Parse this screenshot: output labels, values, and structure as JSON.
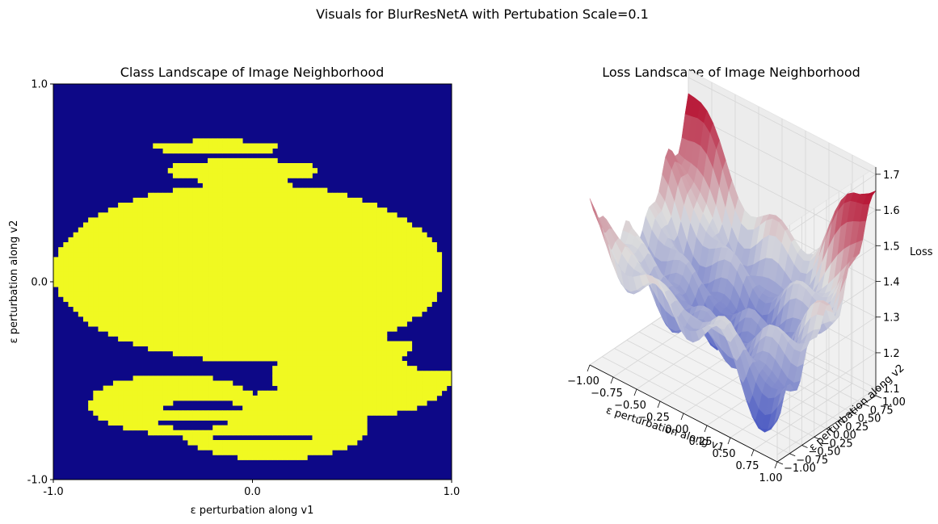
{
  "suptitle": "Visuals for BlurResNetA with Pertubation Scale=0.1",
  "colors": {
    "class_low": "#0d0887",
    "class_high": "#f0f921",
    "surface_low": "#3b4cc0",
    "surface_mid": "#dddddd",
    "surface_high": "#b40426",
    "pane_fill": "#f2f2f2",
    "grid": "#d6d6d6"
  },
  "chart_data": [
    {
      "type": "heatmap",
      "title": "Class Landscape of Image Neighborhood",
      "xlabel": "ε perturbation along v1",
      "ylabel": "ε perturbation along v2",
      "xlim": [
        -1.0,
        1.0
      ],
      "ylim": [
        -1.0,
        1.0
      ],
      "xticks": [
        "-1.0",
        "0.0",
        "1.0"
      ],
      "yticks": [
        "1.0",
        "0.0",
        "-1.0"
      ],
      "colormap": "plasma (two classes)",
      "classes": [
        0,
        1
      ],
      "class_regions": {
        "class_1_blobs": [
          {
            "cx": -0.02,
            "cy": 0.05,
            "rx": 0.98,
            "ry": 0.45
          },
          {
            "cx": -0.4,
            "cy": -0.62,
            "rx": 0.42,
            "ry": 0.15
          },
          {
            "cx": 0.1,
            "cy": -0.73,
            "rx": 0.48,
            "ry": 0.17
          },
          {
            "cx": -0.05,
            "cy": 0.56,
            "rx": 0.38,
            "ry": 0.06
          },
          {
            "cx": -0.18,
            "cy": 0.68,
            "rx": 0.32,
            "ry": 0.035
          },
          {
            "cx": 0.55,
            "cy": -0.48,
            "rx": 0.45,
            "ry": 0.2
          }
        ],
        "class_0_holes": [
          {
            "cx": 0.93,
            "cy": -0.38,
            "rx": 0.17,
            "ry": 0.07
          },
          {
            "cx": -0.25,
            "cy": -0.63,
            "rx": 0.2,
            "ry": 0.028
          },
          {
            "cx": -0.3,
            "cy": -0.72,
            "rx": 0.2,
            "ry": 0.02
          },
          {
            "cx": 0.05,
            "cy": -0.79,
            "rx": 0.25,
            "ry": 0.022
          },
          {
            "cx": -0.6,
            "cy": 0.58,
            "rx": 0.2,
            "ry": 0.025
          }
        ]
      }
    },
    {
      "type": "surface",
      "title": "Loss Landscape of Image Neighborhood",
      "xlabel": "ε perturbation along v1",
      "ylabel": "ε perturbation along v2",
      "zlabel": "Loss",
      "xlim": [
        -1.0,
        1.0
      ],
      "ylim": [
        -1.0,
        1.0
      ],
      "zlim": [
        1.08,
        1.72
      ],
      "xticks": [
        "−1.00",
        "−0.75",
        "−0.50",
        "−0.25",
        "0.00",
        "0.25",
        "0.50",
        "0.75",
        "1.00"
      ],
      "yticks": [
        "−1.00",
        "−0.75",
        "−0.50",
        "−0.25",
        "0.00",
        "0.25",
        "0.50",
        "0.75",
        "1.00"
      ],
      "zticks": [
        "1.1",
        "1.2",
        "1.3",
        "1.4",
        "1.5",
        "1.6",
        "1.7"
      ],
      "colormap": "coolwarm",
      "surface_model": {
        "base": 1.22,
        "bowl": 0.32,
        "peaks": [
          {
            "x": 1.0,
            "y": 1.0,
            "z": 1.7
          },
          {
            "x": -1.0,
            "y": -1.0,
            "z": 1.5
          },
          {
            "x": 1.0,
            "y": -1.0,
            "z": 1.2
          },
          {
            "x": -1.0,
            "y": 1.0,
            "z": 1.65
          }
        ],
        "minimum": {
          "x": 0.0,
          "y": 0.0,
          "z": 1.12
        }
      }
    }
  ]
}
